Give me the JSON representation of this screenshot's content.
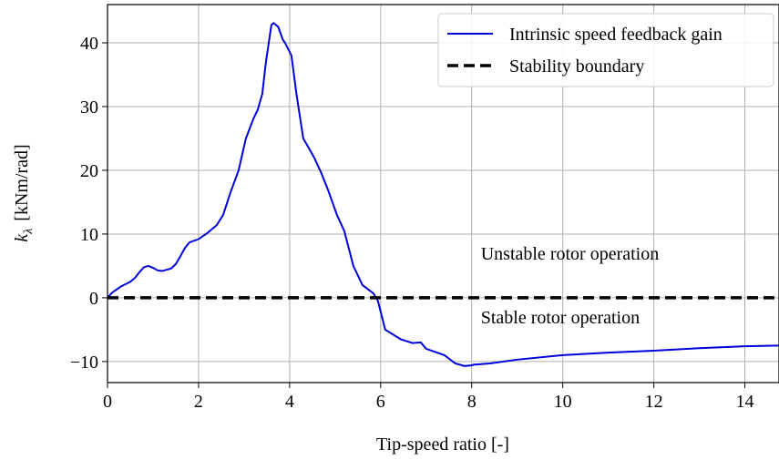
{
  "chart_data": {
    "type": "line",
    "xlabel": "Tip-speed ratio [-]",
    "ylabel_symbol": "k",
    "ylabel_subscript": "λ",
    "ylabel_unit": "[kNm/rad]",
    "xlim": [
      0,
      14.75
    ],
    "ylim": [
      -13.3,
      46
    ],
    "xticks": [
      0,
      2,
      4,
      6,
      8,
      10,
      12,
      14
    ],
    "yticks": [
      {
        "value": -10,
        "label": "−10"
      },
      0,
      10,
      20,
      30,
      40
    ],
    "grid": true,
    "legend": "upper right",
    "series": [
      {
        "name": "Intrinsic speed feedback gain",
        "color": "#0000dd",
        "dash": "solid",
        "x": [
          0,
          0.1,
          0.3,
          0.5,
          0.6,
          0.7,
          0.8,
          0.9,
          1.0,
          1.1,
          1.2,
          1.4,
          1.5,
          1.6,
          1.7,
          1.8,
          2.0,
          2.2,
          2.4,
          2.54,
          2.7,
          2.88,
          3.04,
          3.2,
          3.3,
          3.4,
          3.48,
          3.6,
          3.65,
          3.75,
          3.85,
          3.9,
          4.04,
          4.15,
          4.3,
          4.54,
          4.7,
          4.84,
          5.04,
          5.2,
          5.4,
          5.6,
          5.84,
          5.94,
          6.1,
          6.44,
          6.7,
          6.88,
          7.0,
          7.4,
          7.64,
          7.84,
          8.0,
          8.04,
          8.4,
          9,
          10,
          11,
          12,
          13,
          14,
          14.75
        ],
        "values": [
          0,
          0.8,
          1.8,
          2.5,
          3.1,
          4,
          4.8,
          5,
          4.7,
          4.3,
          4.2,
          4.6,
          5.3,
          6.5,
          7.8,
          8.7,
          9.2,
          10.2,
          11.4,
          13,
          16.5,
          20,
          25,
          28,
          29.5,
          32,
          37,
          42.8,
          43.1,
          42.5,
          40.5,
          40,
          38,
          32,
          25,
          22,
          19.5,
          17,
          13,
          10.5,
          5,
          2,
          0.7,
          -0.5,
          -5,
          -6.5,
          -7.1,
          -7,
          -8,
          -9,
          -10.3,
          -10.7,
          -10.6,
          -10.5,
          -10.3,
          -9.7,
          -9,
          -8.6,
          -8.3,
          -7.9,
          -7.6,
          -7.5
        ]
      },
      {
        "name": "Stability boundary",
        "color": "#000000",
        "dash": "dashed",
        "x": [
          0,
          14.75
        ],
        "values": [
          0,
          0
        ]
      }
    ],
    "annotations": [
      {
        "text": "Unstable rotor operation",
        "x": 8.2,
        "y": 6
      },
      {
        "text": "Stable rotor operation",
        "x": 8.2,
        "y": -4
      }
    ]
  }
}
